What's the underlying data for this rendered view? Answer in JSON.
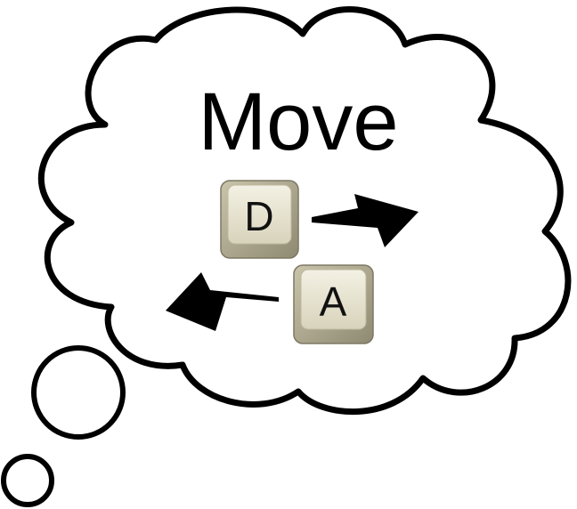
{
  "hint": {
    "title": "Move",
    "keys": [
      {
        "label": "D",
        "direction": "right"
      },
      {
        "label": "A",
        "direction": "left"
      }
    ]
  },
  "colors": {
    "background": "#ffffff",
    "outline": "#000000",
    "key_face": "#e6e2cc",
    "key_side": "#aca78f",
    "arrow": "#000000"
  }
}
